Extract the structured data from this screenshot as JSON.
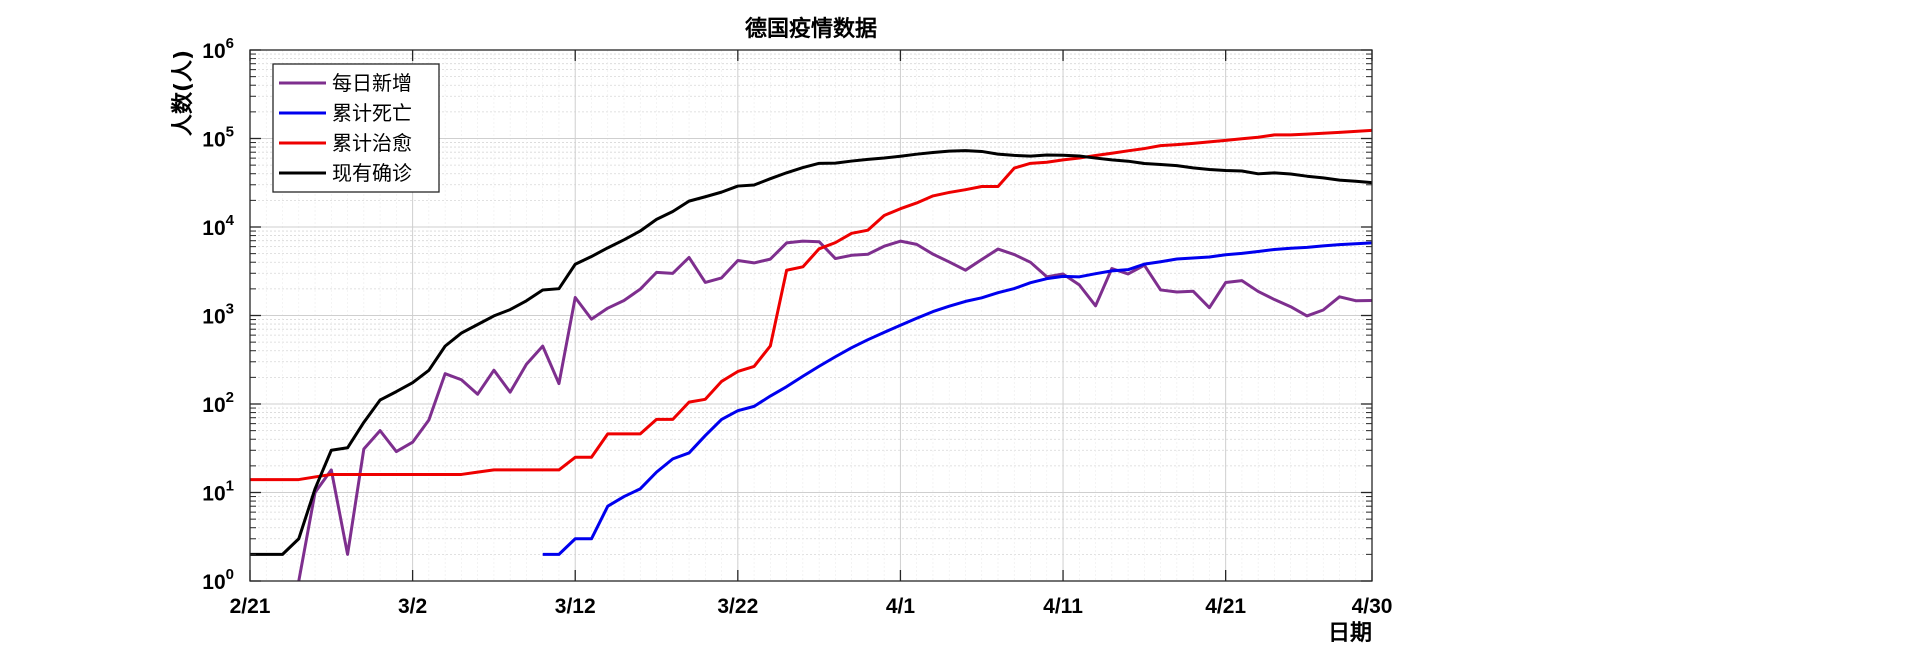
{
  "chart_data": {
    "type": "line",
    "title": "德国疫情数据",
    "xlabel": "日期",
    "ylabel": "人数(人)",
    "yscale": "log",
    "ylim": [
      1,
      1000000
    ],
    "xlim": [
      "2/21",
      "4/30"
    ],
    "grid": "on (major and minor)",
    "legend_position": "top-left",
    "x_ticks": [
      "2/21",
      "3/2",
      "3/12",
      "3/22",
      "4/1",
      "4/11",
      "4/21",
      "4/30"
    ],
    "y_ticks": [
      {
        "base": "10",
        "exp": "0"
      },
      {
        "base": "10",
        "exp": "1"
      },
      {
        "base": "10",
        "exp": "2"
      },
      {
        "base": "10",
        "exp": "3"
      },
      {
        "base": "10",
        "exp": "4"
      },
      {
        "base": "10",
        "exp": "5"
      },
      {
        "base": "10",
        "exp": "6"
      }
    ],
    "x": [
      "2/21",
      "2/22",
      "2/23",
      "2/24",
      "2/25",
      "2/26",
      "2/27",
      "2/28",
      "2/29",
      "3/1",
      "3/2",
      "3/3",
      "3/4",
      "3/5",
      "3/6",
      "3/7",
      "3/8",
      "3/9",
      "3/10",
      "3/11",
      "3/12",
      "3/13",
      "3/14",
      "3/15",
      "3/16",
      "3/17",
      "3/18",
      "3/19",
      "3/20",
      "3/21",
      "3/22",
      "3/23",
      "3/24",
      "3/25",
      "3/26",
      "3/27",
      "3/28",
      "3/29",
      "3/30",
      "3/31",
      "4/1",
      "4/2",
      "4/3",
      "4/4",
      "4/5",
      "4/6",
      "4/7",
      "4/8",
      "4/9",
      "4/10",
      "4/11",
      "4/12",
      "4/13",
      "4/14",
      "4/15",
      "4/16",
      "4/17",
      "4/18",
      "4/19",
      "4/20",
      "4/21",
      "4/22",
      "4/23",
      "4/24",
      "4/25",
      "4/26",
      "4/27",
      "4/28",
      "4/29",
      "4/30"
    ],
    "series": [
      {
        "name": "每日新增",
        "color": "#7E2F8E",
        "values": [
          null,
          null,
          null,
          1,
          10,
          18,
          2,
          31,
          50,
          29,
          37,
          66,
          220,
          188,
          129,
          241,
          136,
          281,
          451,
          170,
          1597,
          910,
          1210,
          1477,
          1985,
          3070,
          2993,
          4528,
          2365,
          2660,
          4183,
          3930,
          4337,
          6615,
          6933,
          6824,
          4400,
          4790,
          4923,
          6064,
          6922,
          6365,
          4933,
          4031,
          3251,
          4289,
          5633,
          4885,
          3990,
          2737,
          2946,
          2218,
          1287,
          3394,
          2945,
          3699,
          1945,
          1842,
          1881,
          1226,
          2357,
          2481,
          1870,
          1514,
          1257,
          988,
          1154,
          1627,
          1470,
          1478
        ]
      },
      {
        "name": "累计死亡",
        "color": "#0000EE",
        "values": [
          null,
          null,
          null,
          null,
          null,
          null,
          null,
          null,
          null,
          null,
          null,
          null,
          null,
          null,
          null,
          null,
          null,
          null,
          2,
          2,
          3,
          3,
          7,
          9,
          11,
          17,
          24,
          28,
          44,
          67,
          84,
          94,
          123,
          157,
          206,
          267,
          342,
          433,
          533,
          645,
          775,
          931,
          1107,
          1275,
          1444,
          1584,
          1810,
          2016,
          2349,
          2607,
          2767,
          2736,
          2969,
          3194,
          3294,
          3804,
          4052,
          4352,
          4459,
          4586,
          4862,
          5033,
          5279,
          5575,
          5760,
          5877,
          6126,
          6314,
          6467,
          6623
        ]
      },
      {
        "name": "累计治愈",
        "color": "#EE0000",
        "values": [
          14,
          14,
          14,
          14,
          15,
          16,
          16,
          16,
          16,
          16,
          16,
          16,
          16,
          16,
          17,
          18,
          18,
          18,
          18,
          18,
          25,
          25,
          46,
          46,
          46,
          67,
          67,
          105,
          113,
          180,
          233,
          266,
          453,
          3243,
          3547,
          5673,
          6658,
          8481,
          9211,
          13500,
          16100,
          18700,
          22440,
          24575,
          26400,
          28700,
          28700,
          46300,
          52407,
          53913,
          57400,
          60200,
          64300,
          68200,
          72600,
          77000,
          83114,
          85400,
          88000,
          91500,
          95200,
          99400,
          103300,
          109800,
          109800,
          112000,
          114500,
          117400,
          120400,
          123500
        ]
      },
      {
        "name": "现有确诊",
        "color": "#000000",
        "values": [
          2,
          2,
          2,
          3,
          11,
          30,
          32,
          62,
          111,
          138,
          174,
          240,
          451,
          633,
          791,
          990,
          1166,
          1466,
          1939,
          2009,
          3795,
          4639,
          5813,
          7164,
          9014,
          12191,
          14958,
          19605,
          21976,
          24773,
          29017,
          29817,
          35138,
          40999,
          46988,
          52401,
          52740,
          55600,
          58100,
          60200,
          63100,
          66500,
          69400,
          71900,
          73000,
          71400,
          66600,
          64400,
          63300,
          65100,
          64600,
          63400,
          60100,
          57400,
          55400,
          52200,
          50800,
          49400,
          46600,
          44600,
          43500,
          42900,
          39900,
          40900,
          39700,
          37500,
          35900,
          33900,
          32900,
          31700
        ]
      }
    ]
  }
}
